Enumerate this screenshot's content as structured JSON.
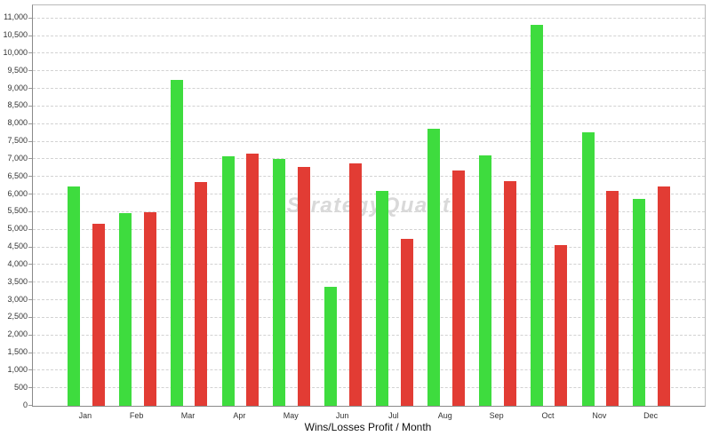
{
  "watermark": "StrategyQuant",
  "colors": {
    "wins": "#3edc3e",
    "losses": "#e23c34",
    "grid": "#d2d2d2",
    "axis_dark": "#8a8a8a",
    "axis_light": "#b9b9b9",
    "label": "#333333",
    "watermark": "#d9d9d9"
  },
  "chart_data": {
    "type": "bar",
    "title": "Wins/Losses Profit / Month",
    "xlabel": "",
    "ylabel": "",
    "categories": [
      "Jan",
      "Feb",
      "Mar",
      "Apr",
      "May",
      "Jun",
      "Jul",
      "Aug",
      "Sep",
      "Oct",
      "Nov",
      "Dec"
    ],
    "series": [
      {
        "name": "Wins",
        "color_key": "wins",
        "values": [
          6220,
          5480,
          9260,
          7080,
          7020,
          3370,
          6110,
          7870,
          7120,
          10830,
          7760,
          5870
        ]
      },
      {
        "name": "Losses",
        "color_key": "losses",
        "values": [
          5180,
          5510,
          6360,
          7160,
          6780,
          6890,
          4750,
          6680,
          6370,
          4560,
          6100,
          6220
        ]
      }
    ],
    "ylim": [
      0,
      11000
    ],
    "ytick_step": 500,
    "ytick_labels": [
      "0",
      "500",
      "1,000",
      "1,500",
      "2,000",
      "2,500",
      "3,000",
      "3,500",
      "4,000",
      "4,500",
      "5,000",
      "5,500",
      "6,000",
      "6,500",
      "7,000",
      "7,500",
      "8,000",
      "8,500",
      "9,000",
      "9,500",
      "10,000",
      "10,500",
      "11,000"
    ],
    "grid": true,
    "legend": "none"
  }
}
